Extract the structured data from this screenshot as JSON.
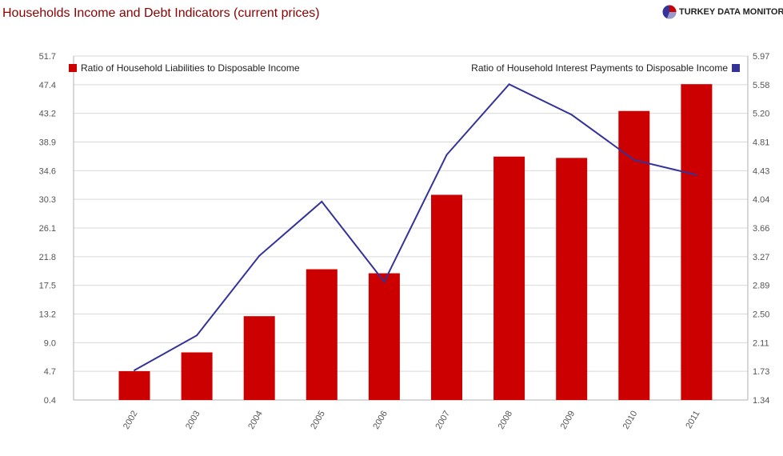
{
  "header": {
    "title": "Households Income and Debt Indicators (current prices)",
    "brand": "TURKEY DATA MONITOR"
  },
  "colors": {
    "bar": "#cc0000",
    "line": "#333399",
    "title": "#8b0000",
    "grid": "#d9d9d9"
  },
  "chart_data": {
    "type": "bar",
    "title": "Households Income and Debt Indicators (current prices)",
    "categories": [
      "2002",
      "2003",
      "2004",
      "2005",
      "2006",
      "2007",
      "2008",
      "2009",
      "2010",
      "2011"
    ],
    "series": [
      {
        "name": "Ratio of Household Liabilities to Disposable Income",
        "type": "bar",
        "axis": "left",
        "values": [
          4.7,
          7.5,
          12.9,
          19.9,
          19.3,
          31.0,
          36.7,
          36.5,
          43.5,
          47.5
        ]
      },
      {
        "name": "Ratio of Household Interest Payments to Disposable Income",
        "type": "line",
        "axis": "right",
        "values": [
          1.74,
          2.21,
          3.28,
          4.01,
          2.93,
          4.64,
          5.59,
          5.18,
          4.57,
          4.37
        ]
      }
    ],
    "y_left": {
      "ticks": [
        "0.4",
        "4.7",
        "9.0",
        "13.2",
        "17.5",
        "21.8",
        "26.1",
        "30.3",
        "34.6",
        "38.9",
        "43.2",
        "47.4",
        "51.7"
      ],
      "ylim": [
        0.4,
        51.7
      ]
    },
    "y_right": {
      "ticks": [
        "1.34",
        "1.73",
        "2.11",
        "2.50",
        "2.89",
        "3.27",
        "3.66",
        "4.04",
        "4.43",
        "4.81",
        "5.20",
        "5.58",
        "5.97"
      ],
      "ylim": [
        1.34,
        5.97
      ]
    },
    "grid": true,
    "legend": [
      "top-left",
      "top-right"
    ]
  }
}
